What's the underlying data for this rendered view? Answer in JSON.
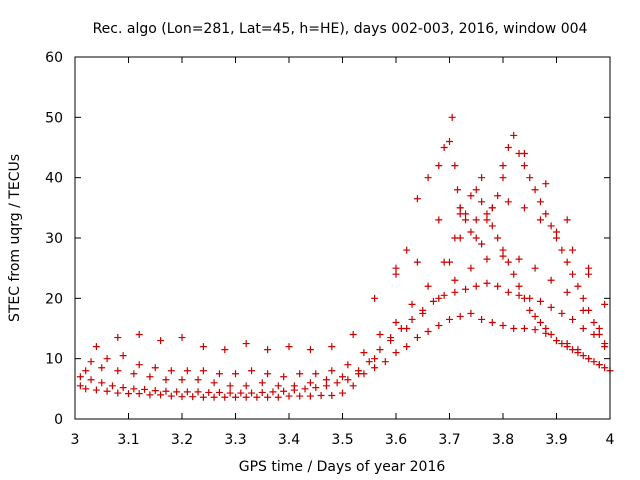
{
  "chart_data": {
    "type": "scatter",
    "title": "Rec. algo (Lon=281, Lat=45, h=HE), days 002-003, 2016, window 004",
    "xlabel": "GPS time / Days of year 2016",
    "ylabel": "STEC from uqrg / TECUs",
    "xlim": [
      3.0,
      4.0
    ],
    "ylim": [
      0,
      60
    ],
    "x_ticks": [
      3.0,
      3.1,
      3.2,
      3.3,
      3.4,
      3.5,
      3.6,
      3.7,
      3.8,
      3.9,
      4.0
    ],
    "x_tick_labels": [
      "3",
      "3.1",
      "3.2",
      "3.3",
      "3.4",
      "3.5",
      "3.6",
      "3.7",
      "3.8",
      "3.9",
      "4"
    ],
    "y_ticks": [
      0,
      10,
      20,
      30,
      40,
      50,
      60
    ],
    "y_tick_labels": [
      "0",
      "10",
      "20",
      "30",
      "40",
      "50",
      "60"
    ],
    "grid": false,
    "legend": "none",
    "marker": "plus",
    "color": "#cc0000",
    "series": [
      {
        "x": [
          3.01,
          3.02,
          3.04,
          3.06,
          3.08,
          3.1,
          3.12,
          3.14,
          3.16,
          3.18,
          3.2,
          3.22,
          3.24,
          3.26,
          3.28,
          3.3,
          3.32,
          3.34,
          3.36,
          3.38,
          3.4,
          3.42,
          3.44,
          3.46,
          3.48,
          3.5,
          3.52,
          3.54,
          3.56,
          3.58,
          3.6,
          3.62,
          3.64,
          3.66,
          3.68,
          3.7,
          3.72,
          3.74,
          3.76,
          3.78,
          3.8,
          3.82,
          3.84,
          3.86,
          3.88,
          3.9,
          3.92,
          3.94,
          3.96,
          3.98,
          4.0,
          3.01,
          3.03,
          3.05,
          3.07,
          3.09,
          3.11,
          3.13,
          3.15,
          3.17,
          3.19,
          3.21,
          3.23,
          3.25,
          3.27,
          3.29,
          3.31,
          3.33,
          3.35,
          3.37,
          3.39,
          3.41,
          3.43,
          3.45,
          3.47,
          3.49,
          3.51,
          3.53,
          3.55,
          3.57,
          3.59,
          3.61,
          3.63,
          3.65,
          3.67,
          3.69,
          3.71,
          3.73,
          3.75,
          3.77,
          3.79,
          3.81,
          3.83,
          3.85,
          3.87,
          3.89,
          3.91,
          3.93,
          3.95,
          3.97,
          3.99,
          3.02,
          3.05,
          3.08,
          3.11,
          3.14,
          3.17,
          3.2,
          3.23,
          3.26,
          3.29,
          3.32,
          3.35,
          3.38,
          3.41,
          3.44,
          3.47,
          3.5,
          3.53,
          3.56,
          3.59,
          3.62,
          3.65,
          3.68,
          3.71,
          3.74,
          3.77,
          3.8,
          3.83,
          3.86,
          3.89,
          3.92,
          3.95,
          3.98,
          3.03,
          3.06,
          3.09,
          3.12,
          3.15,
          3.18,
          3.21,
          3.24,
          3.27,
          3.3,
          3.33,
          3.36,
          3.39,
          3.42,
          3.45,
          3.48,
          3.51,
          3.54,
          3.57,
          3.6,
          3.63,
          3.66,
          3.69,
          3.72,
          3.75,
          3.78,
          3.81,
          3.84,
          3.87,
          3.9,
          3.93,
          3.96,
          3.99,
          3.04,
          3.08,
          3.12,
          3.16,
          3.2,
          3.24,
          3.28,
          3.32,
          3.36,
          3.4,
          3.44,
          3.48,
          3.52,
          3.56,
          3.6,
          3.64,
          3.68,
          3.72,
          3.76,
          3.8,
          3.84,
          3.88,
          3.92,
          3.96,
          3.7,
          3.71,
          3.72,
          3.73,
          3.74,
          3.75,
          3.76,
          3.77,
          3.78,
          3.79,
          3.8,
          3.81,
          3.82,
          3.83,
          3.84,
          3.85,
          3.86,
          3.87,
          3.88,
          3.89,
          3.9,
          3.91,
          3.92,
          3.93,
          3.94,
          3.95,
          3.96,
          3.97,
          3.98,
          3.99,
          3.6,
          3.62,
          3.64,
          3.66,
          3.68,
          3.69,
          3.7,
          3.705,
          3.71,
          3.715,
          3.72,
          3.73,
          3.74,
          3.75,
          3.76,
          3.77,
          3.78,
          3.79,
          3.8,
          3.81,
          3.82,
          3.83,
          3.84,
          3.85,
          3.86,
          3.87,
          3.88,
          3.89,
          3.9,
          3.91,
          3.92,
          3.93,
          3.94,
          3.95,
          3.96,
          3.97,
          3.98,
          3.99
        ],
        "y": [
          5.5,
          5.0,
          4.8,
          4.6,
          4.3,
          4.2,
          4.2,
          4.0,
          4.0,
          3.8,
          3.7,
          3.7,
          3.6,
          3.6,
          3.6,
          3.6,
          3.6,
          3.6,
          3.6,
          3.6,
          3.8,
          3.8,
          3.8,
          3.9,
          3.9,
          4.3,
          5.5,
          7.5,
          8.5,
          9.5,
          11,
          12,
          13.5,
          14.5,
          15.5,
          16.5,
          17,
          17.5,
          16.5,
          16,
          15.5,
          15,
          15,
          14.8,
          14.2,
          13,
          12.5,
          11.5,
          10,
          9,
          8,
          7,
          6.5,
          6,
          5.5,
          5.2,
          5,
          4.9,
          4.7,
          4.6,
          4.5,
          4.5,
          4.5,
          4.4,
          4.4,
          4.3,
          4.3,
          4.3,
          4.4,
          4.5,
          4.6,
          4.8,
          5,
          5.2,
          5.5,
          6,
          6.5,
          7.5,
          9.5,
          11.5,
          13.5,
          15,
          16.5,
          18,
          19.5,
          20.5,
          21,
          21.5,
          22,
          22.5,
          22,
          21,
          20.5,
          20,
          19.5,
          18.5,
          17.5,
          16.5,
          15,
          14,
          12.5,
          8,
          8.5,
          8,
          7.5,
          7,
          6.5,
          6.5,
          6.5,
          6,
          5.5,
          5.5,
          6,
          5.5,
          5.5,
          6,
          6.5,
          7,
          8,
          10,
          13,
          15,
          17.5,
          20,
          23,
          25,
          26.5,
          27,
          26.5,
          25,
          23,
          21,
          18,
          15,
          9.5,
          10,
          10.5,
          9,
          8.5,
          8,
          8,
          8,
          7.5,
          7.5,
          8,
          7.5,
          7,
          7.5,
          7.5,
          8,
          9,
          11,
          14,
          16,
          19,
          22,
          26,
          30,
          33,
          35,
          36,
          35,
          33,
          31,
          28,
          24,
          19,
          12,
          13.5,
          14,
          13,
          13.5,
          12,
          11.5,
          12.5,
          11.5,
          12,
          11.5,
          12,
          14,
          20,
          24,
          26,
          33,
          35,
          40,
          42,
          44,
          39,
          33,
          25,
          26,
          30,
          35,
          34,
          37,
          38,
          36,
          34,
          32,
          30,
          28,
          26,
          24,
          22,
          20,
          18,
          17,
          16,
          15,
          14,
          13,
          12.5,
          12,
          11.5,
          11,
          10.5,
          10,
          9.5,
          9,
          8.5,
          25,
          28,
          36.5,
          40,
          42,
          45,
          46,
          50,
          42,
          38,
          34,
          33,
          31,
          30,
          29,
          33,
          35,
          37,
          40,
          45,
          47,
          44,
          42,
          40,
          38,
          36,
          34,
          32,
          30,
          28,
          26,
          24,
          22,
          20,
          18,
          16,
          14,
          12
        ]
      }
    ]
  }
}
